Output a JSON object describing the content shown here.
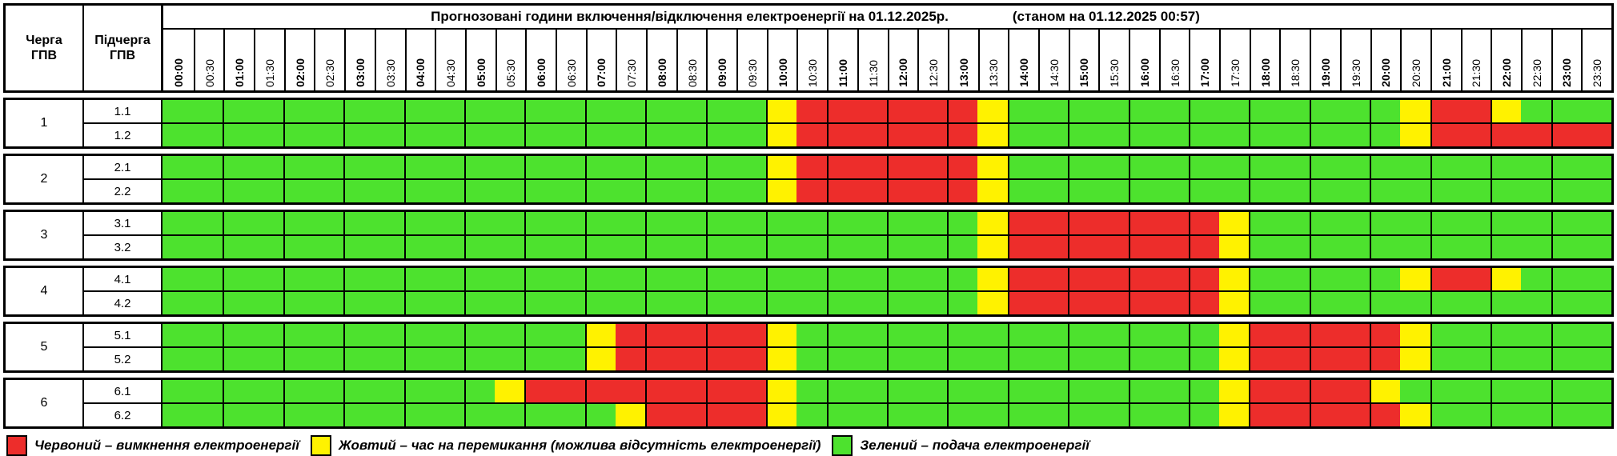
{
  "header": {
    "queue_col_label": "Черга\nГПВ",
    "subqueue_col_label": "Підчерга\nГПВ",
    "title": "Прогнозовані години включення/відключення електроенергії на 01.12.2025р.",
    "as_of": "(станом на 01.12.2025 00:57)"
  },
  "time_slots": [
    "00:00",
    "00:30",
    "01:00",
    "01:30",
    "02:00",
    "02:30",
    "03:00",
    "03:30",
    "04:00",
    "04:30",
    "05:00",
    "05:30",
    "06:00",
    "06:30",
    "07:00",
    "07:30",
    "08:00",
    "08:30",
    "09:00",
    "09:30",
    "10:00",
    "10:30",
    "11:00",
    "11:30",
    "12:00",
    "12:30",
    "13:00",
    "13:30",
    "14:00",
    "14:30",
    "15:00",
    "15:30",
    "16:00",
    "16:30",
    "17:00",
    "17:30",
    "18:00",
    "18:30",
    "19:00",
    "19:30",
    "20:00",
    "20:30",
    "21:00",
    "21:30",
    "22:00",
    "22:30",
    "23:00",
    "23:30"
  ],
  "colors": {
    "G": "#4de22e",
    "Y": "#fff200",
    "R": "#ed2d2b"
  },
  "groups": [
    {
      "queue": "1",
      "subrows": [
        {
          "label": "1.1",
          "slots": "GGGGGGGGGGGGGGGGGGGGYRRRRRRYGGGGGGGGGGGGGYRRYGGG"
        },
        {
          "label": "1.2",
          "slots": "GGGGGGGGGGGGGGGGGGGGYRRRRRRYGGGGGGGGGGGGGYRRRRRR"
        }
      ]
    },
    {
      "queue": "2",
      "subrows": [
        {
          "label": "2.1",
          "slots": "GGGGGGGGGGGGGGGGGGGGYRRRRRRYGGGGGGGGGGGGGGGGGGGG"
        },
        {
          "label": "2.2",
          "slots": "GGGGGGGGGGGGGGGGGGGGYRRRRRRYGGGGGGGGGGGGGGGGGGGG"
        }
      ]
    },
    {
      "queue": "3",
      "subrows": [
        {
          "label": "3.1",
          "slots": "GGGGGGGGGGGGGGGGGGGGGGGGGGGYRRRRRRRYGGGGGGGGGGGG"
        },
        {
          "label": "3.2",
          "slots": "GGGGGGGGGGGGGGGGGGGGGGGGGGGYRRRRRRRYGGGGGGGGGGGG"
        }
      ]
    },
    {
      "queue": "4",
      "subrows": [
        {
          "label": "4.1",
          "slots": "GGGGGGGGGGGGGGGGGGGGGGGGGGGYRRRRRRRYGGGGGYRRYGGG"
        },
        {
          "label": "4.2",
          "slots": "GGGGGGGGGGGGGGGGGGGGGGGGGGGYRRRRRRRYGGGGGGGGGGGG"
        }
      ]
    },
    {
      "queue": "5",
      "subrows": [
        {
          "label": "5.1",
          "slots": "GGGGGGGGGGGGGGYRRRRRYGGGGGGGGGGGGGGYRRRRRYGGGGGG"
        },
        {
          "label": "5.2",
          "slots": "GGGGGGGGGGGGGGYRRRRRYGGGGGGGGGGGGGGYRRRRRYGGGGGG"
        }
      ]
    },
    {
      "queue": "6",
      "subrows": [
        {
          "label": "6.1",
          "slots": "GGGGGGGGGGGYRRRRRRRRYGGGGGGGGGGGGGGYRRRRYGGGGGGG"
        },
        {
          "label": "6.2",
          "slots": "GGGGGGGGGGGGGGGYRRRRYGGGGGGGGGGGGGGYRRRRRYGGGGGG"
        }
      ]
    }
  ],
  "legend": [
    {
      "color_key": "R",
      "label": "Червоний – вимкнення електроенергії"
    },
    {
      "color_key": "Y",
      "label": "Жовтий – час на перемикання (можлива відсутність електроенергії)"
    },
    {
      "color_key": "G",
      "label": "Зелений – подача електроенергії"
    }
  ],
  "chart_data": {
    "type": "heatmap",
    "title": "Прогнозовані години включення/відключення електроенергії на 01.12.2025р.",
    "as_of": "(станом на 01.12.2025 00:57)",
    "x": [
      "00:00",
      "00:30",
      "01:00",
      "01:30",
      "02:00",
      "02:30",
      "03:00",
      "03:30",
      "04:00",
      "04:30",
      "05:00",
      "05:30",
      "06:00",
      "06:30",
      "07:00",
      "07:30",
      "08:00",
      "08:30",
      "09:00",
      "09:30",
      "10:00",
      "10:30",
      "11:00",
      "11:30",
      "12:00",
      "12:30",
      "13:00",
      "13:30",
      "14:00",
      "14:30",
      "15:00",
      "15:30",
      "16:00",
      "16:30",
      "17:00",
      "17:30",
      "18:00",
      "18:30",
      "19:00",
      "19:30",
      "20:00",
      "20:30",
      "21:00",
      "21:30",
      "22:00",
      "22:30",
      "23:00",
      "23:30"
    ],
    "rows": [
      {
        "queue": "1",
        "subqueue": "1.1",
        "slots": "GGGGGGGGGGGGGGGGGGGGYRRRRRRYGGGGGGGGGGGGGYRRYGGG"
      },
      {
        "queue": "1",
        "subqueue": "1.2",
        "slots": "GGGGGGGGGGGGGGGGGGGGYRRRRRRYGGGGGGGGGGGGGYRRRRRR"
      },
      {
        "queue": "2",
        "subqueue": "2.1",
        "slots": "GGGGGGGGGGGGGGGGGGGGYRRRRRRYGGGGGGGGGGGGGGGGGGGG"
      },
      {
        "queue": "2",
        "subqueue": "2.2",
        "slots": "GGGGGGGGGGGGGGGGGGGGYRRRRRRYGGGGGGGGGGGGGGGGGGGG"
      },
      {
        "queue": "3",
        "subqueue": "3.1",
        "slots": "GGGGGGGGGGGGGGGGGGGGGGGGGGGYRRRRRRRYGGGGGGGGGGGG"
      },
      {
        "queue": "3",
        "subqueue": "3.2",
        "slots": "GGGGGGGGGGGGGGGGGGGGGGGGGGGYRRRRRRRYGGGGGGGGGGGG"
      },
      {
        "queue": "4",
        "subqueue": "4.1",
        "slots": "GGGGGGGGGGGGGGGGGGGGGGGGGGGYRRRRRRRYGGGGGYRRYGGG"
      },
      {
        "queue": "4",
        "subqueue": "4.2",
        "slots": "GGGGGGGGGGGGGGGGGGGGGGGGGGGYRRRRRRRYGGGGGGGGGGGG"
      },
      {
        "queue": "5",
        "subqueue": "5.1",
        "slots": "GGGGGGGGGGGGGGYRRRRRYGGGGGGGGGGGGGGYRRRRRYGGGGGG"
      },
      {
        "queue": "5",
        "subqueue": "5.2",
        "slots": "GGGGGGGGGGGGGGYRRRRRYGGGGGGGGGGGGGGYRRRRRYGGGGGG"
      },
      {
        "queue": "6",
        "subqueue": "6.1",
        "slots": "GGGGGGGGGGGYRRRRRRRRYGGGGGGGGGGGGGGYRRRRYGGGGGGG"
      },
      {
        "queue": "6",
        "subqueue": "6.2",
        "slots": "GGGGGGGGGGGGGGGYRRRRYGGGGGGGGGGGGGGYRRRRRYGGGGGG"
      }
    ],
    "encoding": {
      "G": "Зелений – подача електроенергії",
      "Y": "Жовтий – час на перемикання (можлива відсутність електроенергії)",
      "R": "Червоний – вимкнення електроенергії"
    },
    "legend_position": "bottom"
  }
}
